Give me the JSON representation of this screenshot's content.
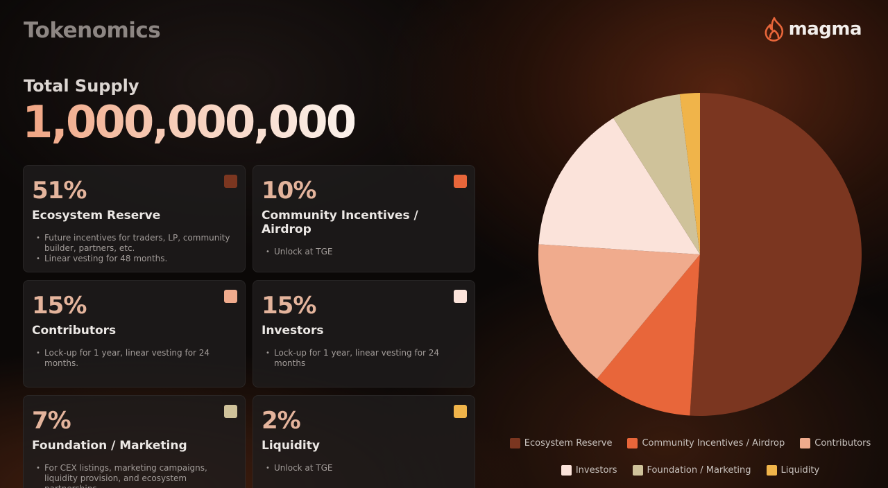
{
  "page": {
    "title": "Tokenomics",
    "brand": "magma",
    "supply_label": "Total Supply",
    "supply_value": "1,000,000,000"
  },
  "cards": [
    {
      "percent": "51%",
      "name": "Ecosystem Reserve",
      "color": "#7b3620",
      "bullets": [
        "Future incentives for traders, LP, community builder, partners, etc.",
        "Linear vesting for 48 months."
      ]
    },
    {
      "percent": "10%",
      "name": "Community Incentives / Airdrop",
      "color": "#e8663a",
      "bullets": [
        "Unlock at TGE"
      ]
    },
    {
      "percent": "15%",
      "name": "Contributors",
      "color": "#f0ab8d",
      "bullets": [
        "Lock-up for 1 year, linear vesting for 24 months."
      ]
    },
    {
      "percent": "15%",
      "name": "Investors",
      "color": "#fbe3da",
      "bullets": [
        "Lock-up for 1 year, linear vesting for 24 months"
      ]
    },
    {
      "percent": "7%",
      "name": "Foundation / Marketing",
      "color": "#cfc29a",
      "bullets": [
        "For CEX listings, marketing campaigns, liquidity provision, and ecosystem partnerships."
      ]
    },
    {
      "percent": "2%",
      "name": "Liquidity",
      "color": "#f0b44a",
      "bullets": [
        "Unlock at TGE"
      ]
    }
  ],
  "chart_data": {
    "type": "pie",
    "categories": [
      "Ecosystem Reserve",
      "Community Incentives / Airdrop",
      "Contributors",
      "Investors",
      "Foundation / Marketing",
      "Liquidity"
    ],
    "values": [
      51,
      10,
      15,
      15,
      7,
      2
    ],
    "colors": [
      "#7b3620",
      "#e8663a",
      "#f0ab8d",
      "#fbe3da",
      "#cfc29a",
      "#f0b44a"
    ],
    "legend_position": "bottom"
  }
}
